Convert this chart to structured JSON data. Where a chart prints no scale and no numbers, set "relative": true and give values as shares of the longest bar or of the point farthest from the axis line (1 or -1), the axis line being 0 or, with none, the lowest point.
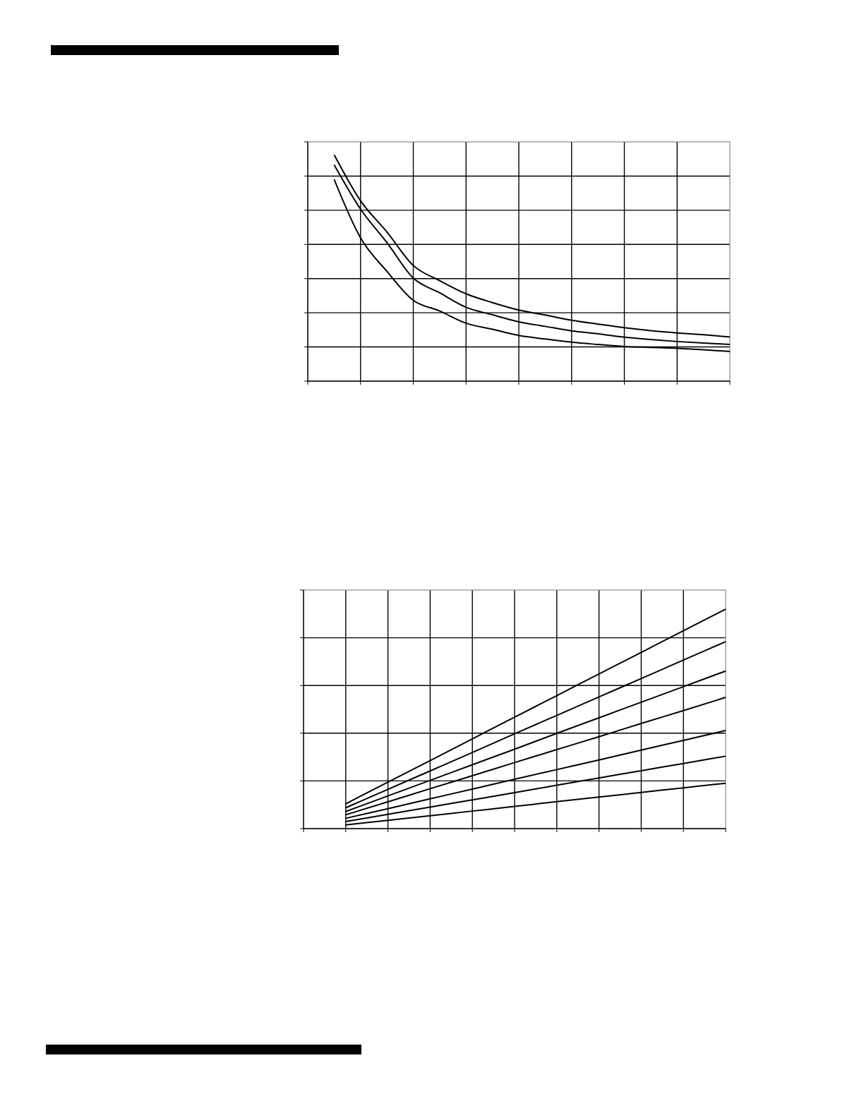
{
  "chart_data": [
    {
      "type": "line",
      "relative": true,
      "grid": true,
      "categories": [
        null,
        null,
        null,
        null,
        null,
        null,
        null,
        null,
        null,
        null,
        null,
        null,
        null,
        null,
        null,
        null,
        null
      ],
      "series": [
        {
          "color": "#000000",
          "values": [
            null,
            1,
            0.797,
            0.659,
            0.511,
            0.444,
            0.386,
            0.347,
            0.314,
            0.292,
            0.269,
            0.252,
            0.236,
            0.223,
            0.213,
            0.205,
            0.195
          ]
        },
        {
          "color": "#000000",
          "values": [
            null,
            0.956,
            0.76,
            0.612,
            0.455,
            0.39,
            0.326,
            0.293,
            0.262,
            0.242,
            0.222,
            0.209,
            0.194,
            0.184,
            0.175,
            0.168,
            0.162
          ]
        },
        {
          "color": "#000000",
          "values": [
            null,
            0.891,
            0.633,
            0.485,
            0.357,
            0.31,
            0.256,
            0.229,
            0.202,
            0.186,
            0.172,
            0.162,
            0.153,
            0.149,
            0.145,
            0.139,
            0.131
          ]
        }
      ]
    },
    {
      "type": "line",
      "relative": true,
      "grid": true,
      "categories": [
        null,
        null,
        null,
        null,
        null,
        null,
        null,
        null,
        null,
        null,
        null
      ],
      "series": [
        {
          "color": "#000000",
          "values": [
            null,
            0.113,
            0.212,
            0.31,
            0.409,
            0.508,
            0.606,
            0.705,
            0.803,
            0.902,
            1
          ]
        },
        {
          "color": "#000000",
          "values": [
            null,
            0.095,
            0.179,
            0.263,
            0.347,
            0.432,
            0.516,
            0.6,
            0.684,
            0.768,
            0.852
          ]
        },
        {
          "color": "#000000",
          "values": [
            null,
            0.078,
            0.149,
            0.22,
            0.291,
            0.362,
            0.434,
            0.505,
            0.576,
            0.647,
            0.718
          ]
        },
        {
          "color": "#000000",
          "values": [
            null,
            0.063,
            0.122,
            0.182,
            0.241,
            0.301,
            0.36,
            0.419,
            0.479,
            0.538,
            0.598
          ]
        },
        {
          "color": "#000000",
          "values": [
            null,
            0.047,
            0.091,
            0.136,
            0.18,
            0.225,
            0.269,
            0.313,
            0.358,
            0.402,
            0.447
          ]
        },
        {
          "color": "#000000",
          "values": [
            null,
            0.032,
            0.065,
            0.098,
            0.131,
            0.164,
            0.198,
            0.231,
            0.264,
            0.297,
            0.33
          ]
        },
        {
          "color": "#000000",
          "values": [
            null,
            0.017,
            0.038,
            0.059,
            0.08,
            0.101,
            0.123,
            0.144,
            0.165,
            0.186,
            0.207
          ]
        }
      ]
    }
  ]
}
